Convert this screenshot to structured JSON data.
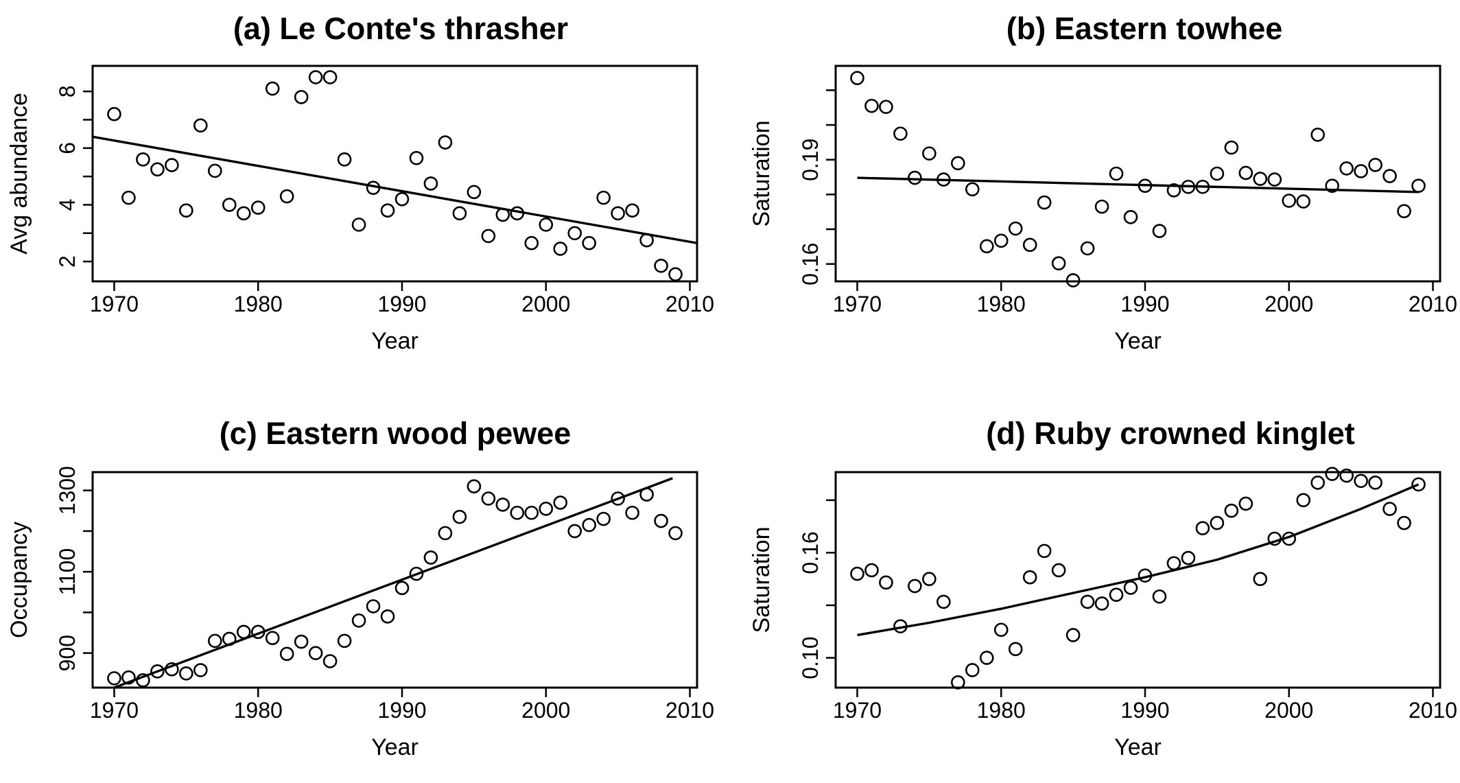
{
  "chart_data": [
    {
      "type": "scatter",
      "title": "(a) Le Conte's thrasher",
      "xlabel": "Year",
      "ylabel": "Avg abundance",
      "xlim": [
        1968.5,
        2010.5
      ],
      "ylim": [
        1.3,
        8.9
      ],
      "xticks": [
        1970,
        1980,
        1990,
        2000,
        2010
      ],
      "xtick_labels": [
        "1970",
        "1980",
        "1990",
        "2000",
        "2010"
      ],
      "yticks": [
        2,
        3,
        4,
        5,
        6,
        7,
        8
      ],
      "ytick_labels": [
        "2",
        "",
        "4",
        "",
        "6",
        "",
        "8"
      ],
      "x": [
        1970,
        1971,
        1972,
        1973,
        1974,
        1975,
        1976,
        1977,
        1978,
        1979,
        1980,
        1981,
        1982,
        1983,
        1984,
        1985,
        1986,
        1987,
        1988,
        1989,
        1990,
        1991,
        1992,
        1993,
        1994,
        1995,
        1996,
        1997,
        1998,
        1999,
        2000,
        2001,
        2002,
        2003,
        2004,
        2005,
        2006,
        2007,
        2008,
        2009
      ],
      "y": [
        7.2,
        4.25,
        5.6,
        5.25,
        5.4,
        3.8,
        6.8,
        5.2,
        4.0,
        3.7,
        3.9,
        8.1,
        4.3,
        7.8,
        8.5,
        8.5,
        5.6,
        3.3,
        4.6,
        3.8,
        4.2,
        5.65,
        4.75,
        6.2,
        3.7,
        4.45,
        2.9,
        3.65,
        3.7,
        2.65,
        3.3,
        2.45,
        3.0,
        2.65,
        4.25,
        3.7,
        3.8,
        2.75,
        1.85,
        1.55
      ],
      "trend": {
        "x": [
          1968.5,
          2010.5
        ],
        "y": [
          6.4,
          2.65
        ]
      },
      "grid": false,
      "legend": "none"
    },
    {
      "type": "scatter",
      "title": "(b) Eastern towhee",
      "xlabel": "Year",
      "ylabel": "Saturation",
      "xlim": [
        1968.5,
        2010.5
      ],
      "ylim": [
        0.155,
        0.217
      ],
      "xticks": [
        1970,
        1980,
        1990,
        2000,
        2010
      ],
      "xtick_labels": [
        "1970",
        "1980",
        "1990",
        "2000",
        "2010"
      ],
      "yticks": [
        0.16,
        0.17,
        0.18,
        0.19,
        0.2,
        0.21
      ],
      "ytick_labels": [
        "0.16",
        "",
        "",
        "0.19",
        "",
        ""
      ],
      "x": [
        1970,
        1971,
        1972,
        1973,
        1974,
        1975,
        1976,
        1977,
        1978,
        1979,
        1980,
        1981,
        1982,
        1983,
        1984,
        1985,
        1986,
        1987,
        1988,
        1989,
        1990,
        1991,
        1992,
        1993,
        1994,
        1995,
        1996,
        1997,
        1998,
        1999,
        2000,
        2001,
        2002,
        2003,
        2004,
        2005,
        2006,
        2007,
        2008,
        2009
      ],
      "y": [
        0.2135,
        0.2055,
        0.2052,
        0.1975,
        0.1848,
        0.1918,
        0.1843,
        0.189,
        0.1815,
        0.1651,
        0.1667,
        0.1702,
        0.1655,
        0.1777,
        0.1602,
        0.1553,
        0.1645,
        0.1765,
        0.186,
        0.1735,
        0.1825,
        0.1695,
        0.1812,
        0.1822,
        0.1822,
        0.186,
        0.1935,
        0.1862,
        0.1845,
        0.1843,
        0.1782,
        0.178,
        0.1972,
        0.1825,
        0.1875,
        0.1867,
        0.1885,
        0.1853,
        0.1752,
        0.1825
      ],
      "trend": {
        "x": [
          1970,
          2009
        ],
        "y": [
          0.1848,
          0.1807
        ]
      },
      "grid": false,
      "legend": "none"
    },
    {
      "type": "scatter",
      "title": "(c) Eastern wood pewee",
      "xlabel": "Year",
      "ylabel": "Occupancy",
      "xlim": [
        1968.5,
        2010.5
      ],
      "ylim": [
        815,
        1345
      ],
      "xticks": [
        1970,
        1980,
        1990,
        2000,
        2010
      ],
      "xtick_labels": [
        "1970",
        "1980",
        "1990",
        "2000",
        "2010"
      ],
      "yticks": [
        900,
        1000,
        1100,
        1200,
        1300
      ],
      "ytick_labels": [
        "900",
        "",
        "1100",
        "",
        "1300"
      ],
      "x": [
        1970,
        1971,
        1972,
        1973,
        1974,
        1975,
        1976,
        1977,
        1978,
        1979,
        1980,
        1981,
        1982,
        1983,
        1984,
        1985,
        1986,
        1987,
        1988,
        1989,
        1990,
        1991,
        1992,
        1993,
        1994,
        1995,
        1996,
        1997,
        1998,
        1999,
        2000,
        2001,
        2002,
        2003,
        2004,
        2005,
        2006,
        2007,
        2008,
        2009
      ],
      "y": [
        838,
        840,
        833,
        855,
        860,
        850,
        858,
        930,
        935,
        952,
        952,
        937,
        898,
        928,
        900,
        880,
        930,
        980,
        1015,
        990,
        1060,
        1095,
        1135,
        1195,
        1235,
        1310,
        1280,
        1265,
        1245,
        1245,
        1255,
        1270,
        1200,
        1215,
        1230,
        1280,
        1245,
        1290,
        1225,
        1195
      ],
      "trend": {
        "x": [
          1970,
          2008.8
        ],
        "y": [
          815,
          1330
        ]
      },
      "grid": false,
      "legend": "none"
    },
    {
      "type": "scatter",
      "title": "(d) Ruby crowned kinglet",
      "xlabel": "Year",
      "ylabel": "Saturation",
      "xlim": [
        1968.5,
        2010.5
      ],
      "ylim": [
        0.083,
        0.206
      ],
      "xticks": [
        1970,
        1980,
        1990,
        2000,
        2010
      ],
      "xtick_labels": [
        "1970",
        "1980",
        "1990",
        "2000",
        "2010"
      ],
      "yticks": [
        0.1,
        0.13,
        0.16,
        0.19
      ],
      "ytick_labels": [
        "0.10",
        "",
        "0.16",
        ""
      ],
      "x": [
        1970,
        1971,
        1972,
        1973,
        1974,
        1975,
        1976,
        1977,
        1978,
        1979,
        1980,
        1981,
        1982,
        1983,
        1984,
        1985,
        1986,
        1987,
        1988,
        1989,
        1990,
        1991,
        1992,
        1993,
        1994,
        1995,
        1996,
        1997,
        1998,
        1999,
        2000,
        2001,
        2002,
        2003,
        2004,
        2005,
        2006,
        2007,
        2008,
        2009
      ],
      "y": [
        0.148,
        0.15,
        0.143,
        0.118,
        0.141,
        0.145,
        0.132,
        0.086,
        0.093,
        0.1,
        0.116,
        0.105,
        0.146,
        0.161,
        0.15,
        0.113,
        0.132,
        0.131,
        0.136,
        0.14,
        0.147,
        0.135,
        0.154,
        0.157,
        0.174,
        0.177,
        0.184,
        0.188,
        0.145,
        0.168,
        0.168,
        0.19,
        0.2,
        0.205,
        0.204,
        0.201,
        0.2,
        0.185,
        0.177,
        0.199
      ],
      "trend": {
        "x": [
          1970,
          1975,
          1980,
          1985,
          1990,
          1995,
          2000,
          2005,
          2009
        ],
        "y": [
          0.113,
          0.12,
          0.128,
          0.137,
          0.146,
          0.156,
          0.169,
          0.185,
          0.199
        ]
      },
      "grid": false,
      "legend": "none"
    }
  ]
}
